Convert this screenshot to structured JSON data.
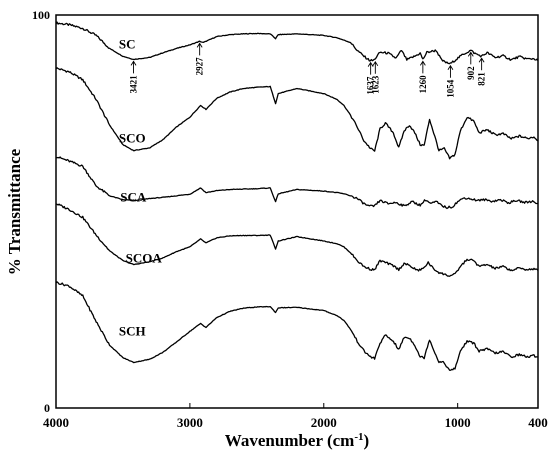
{
  "chart_data": {
    "type": "line",
    "xlabel": "Wavenumber (cm",
    "xlabel_sup": "-1",
    "xlabel_tail": ")",
    "ylabel": "% Transmittance",
    "xlim": [
      4000,
      400
    ],
    "x_reversed": true,
    "ylim": [
      0,
      100
    ],
    "x_ticks": [
      "4000",
      "3000",
      "2000",
      "1000",
      "400"
    ],
    "x_tick_values": [
      4000,
      3000,
      2000,
      1000,
      400
    ],
    "y_ticks": [
      "0",
      "100"
    ],
    "y_tick_values": [
      0,
      100
    ],
    "grid": false,
    "series": [
      {
        "name": "SC",
        "label_at": [
          3530,
          91.5
        ],
        "points": [
          [
            4000,
            98
          ],
          [
            3900,
            97.5
          ],
          [
            3800,
            96.6
          ],
          [
            3700,
            94.8
          ],
          [
            3600,
            91.5
          ],
          [
            3500,
            89.5
          ],
          [
            3421,
            88.7
          ],
          [
            3300,
            89.2
          ],
          [
            3200,
            90.4
          ],
          [
            3100,
            91.5
          ],
          [
            3000,
            92.4
          ],
          [
            2927,
            93.3
          ],
          [
            2900,
            93.0
          ],
          [
            2800,
            94.5
          ],
          [
            2700,
            95.0
          ],
          [
            2600,
            95.2
          ],
          [
            2500,
            95.3
          ],
          [
            2400,
            95.2
          ],
          [
            2360,
            94.0
          ],
          [
            2340,
            95.0
          ],
          [
            2200,
            95.2
          ],
          [
            2000,
            94.8
          ],
          [
            1900,
            94.2
          ],
          [
            1800,
            93.0
          ],
          [
            1750,
            91.0
          ],
          [
            1700,
            89.5
          ],
          [
            1660,
            88.5
          ],
          [
            1637,
            88.4
          ],
          [
            1623,
            88.6
          ],
          [
            1580,
            90.5
          ],
          [
            1520,
            90.3
          ],
          [
            1460,
            89.0
          ],
          [
            1420,
            91.0
          ],
          [
            1380,
            88.6
          ],
          [
            1320,
            89.5
          ],
          [
            1280,
            90.3
          ],
          [
            1260,
            88.7
          ],
          [
            1230,
            90.5
          ],
          [
            1160,
            91.0
          ],
          [
            1120,
            88.5
          ],
          [
            1080,
            87.8
          ],
          [
            1054,
            87.6
          ],
          [
            1020,
            88.5
          ],
          [
            960,
            90.0
          ],
          [
            902,
            91.0
          ],
          [
            870,
            90.2
          ],
          [
            821,
            89.5
          ],
          [
            780,
            90.4
          ],
          [
            720,
            89.2
          ],
          [
            660,
            89.6
          ],
          [
            600,
            88.6
          ],
          [
            540,
            89.4
          ],
          [
            480,
            88.8
          ],
          [
            430,
            88.9
          ],
          [
            400,
            88.4
          ]
        ]
      },
      {
        "name": "SCO",
        "label_at": [
          3530,
          67.5
        ],
        "points": [
          [
            4000,
            86.5
          ],
          [
            3900,
            85.5
          ],
          [
            3800,
            83.5
          ],
          [
            3700,
            78.5
          ],
          [
            3600,
            72.0
          ],
          [
            3500,
            67.0
          ],
          [
            3420,
            65.5
          ],
          [
            3300,
            66.2
          ],
          [
            3200,
            68.3
          ],
          [
            3100,
            71.5
          ],
          [
            3000,
            74.0
          ],
          [
            2920,
            77.0
          ],
          [
            2880,
            76.0
          ],
          [
            2800,
            78.8
          ],
          [
            2700,
            80.4
          ],
          [
            2600,
            81.3
          ],
          [
            2500,
            81.6
          ],
          [
            2400,
            81.8
          ],
          [
            2360,
            77.5
          ],
          [
            2340,
            80.0
          ],
          [
            2200,
            81.3
          ],
          [
            2000,
            80.0
          ],
          [
            1900,
            78.5
          ],
          [
            1850,
            77.0
          ],
          [
            1800,
            74.5
          ],
          [
            1750,
            71.5
          ],
          [
            1700,
            68.0
          ],
          [
            1650,
            66.0
          ],
          [
            1620,
            65.4
          ],
          [
            1580,
            71.0
          ],
          [
            1540,
            72.5
          ],
          [
            1480,
            70.0
          ],
          [
            1440,
            66.2
          ],
          [
            1400,
            70.5
          ],
          [
            1360,
            72.0
          ],
          [
            1320,
            70.0
          ],
          [
            1280,
            67.0
          ],
          [
            1250,
            66.8
          ],
          [
            1210,
            73.5
          ],
          [
            1170,
            69.0
          ],
          [
            1140,
            65.5
          ],
          [
            1100,
            66.0
          ],
          [
            1060,
            63.5
          ],
          [
            1020,
            64.5
          ],
          [
            980,
            70.5
          ],
          [
            930,
            74.0
          ],
          [
            880,
            73.0
          ],
          [
            840,
            70.0
          ],
          [
            780,
            70.8
          ],
          [
            720,
            69.5
          ],
          [
            660,
            69.8
          ],
          [
            600,
            68.5
          ],
          [
            540,
            69.2
          ],
          [
            480,
            68.6
          ],
          [
            430,
            69.0
          ],
          [
            400,
            68.0
          ]
        ]
      },
      {
        "name": "SCA",
        "label_at": [
          3520,
          52.5
        ],
        "points": [
          [
            4000,
            64.0
          ],
          [
            3900,
            62.8
          ],
          [
            3800,
            61.5
          ],
          [
            3700,
            56.5
          ],
          [
            3600,
            54.0
          ],
          [
            3500,
            53.0
          ],
          [
            3400,
            52.8
          ],
          [
            3300,
            53.3
          ],
          [
            3200,
            53.6
          ],
          [
            3100,
            54.0
          ],
          [
            3000,
            54.4
          ],
          [
            2920,
            56.0
          ],
          [
            2880,
            54.8
          ],
          [
            2800,
            55.3
          ],
          [
            2700,
            55.6
          ],
          [
            2600,
            55.7
          ],
          [
            2500,
            55.8
          ],
          [
            2400,
            56.0
          ],
          [
            2360,
            52.5
          ],
          [
            2340,
            54.5
          ],
          [
            2200,
            55.6
          ],
          [
            2000,
            55.2
          ],
          [
            1900,
            54.8
          ],
          [
            1850,
            54.5
          ],
          [
            1800,
            54.0
          ],
          [
            1750,
            53.3
          ],
          [
            1700,
            52.0
          ],
          [
            1660,
            51.3
          ],
          [
            1620,
            51.4
          ],
          [
            1580,
            52.8
          ],
          [
            1520,
            52.0
          ],
          [
            1460,
            52.3
          ],
          [
            1400,
            51.4
          ],
          [
            1340,
            52.5
          ],
          [
            1280,
            51.6
          ],
          [
            1240,
            53.0
          ],
          [
            1200,
            52.0
          ],
          [
            1160,
            52.5
          ],
          [
            1120,
            51.5
          ],
          [
            1080,
            51.0
          ],
          [
            1040,
            51.2
          ],
          [
            1000,
            52.5
          ],
          [
            950,
            53.5
          ],
          [
            900,
            53.2
          ],
          [
            850,
            52.8
          ],
          [
            800,
            53.0
          ],
          [
            740,
            52.6
          ],
          [
            680,
            53.0
          ],
          [
            620,
            52.2
          ],
          [
            560,
            52.8
          ],
          [
            500,
            52.3
          ],
          [
            440,
            52.6
          ],
          [
            400,
            52.0
          ]
        ]
      },
      {
        "name": "SCOA",
        "label_at": [
          3480,
          37.0
        ],
        "points": [
          [
            4000,
            52.0
          ],
          [
            3900,
            50.5
          ],
          [
            3800,
            48.5
          ],
          [
            3700,
            44.0
          ],
          [
            3600,
            40.0
          ],
          [
            3500,
            37.5
          ],
          [
            3420,
            36.5
          ],
          [
            3300,
            37.2
          ],
          [
            3200,
            38.2
          ],
          [
            3100,
            39.8
          ],
          [
            3000,
            41.0
          ],
          [
            2920,
            43.0
          ],
          [
            2880,
            42.0
          ],
          [
            2800,
            43.3
          ],
          [
            2700,
            43.8
          ],
          [
            2600,
            43.9
          ],
          [
            2500,
            43.9
          ],
          [
            2400,
            44.0
          ],
          [
            2360,
            40.5
          ],
          [
            2340,
            42.5
          ],
          [
            2200,
            43.6
          ],
          [
            2000,
            42.5
          ],
          [
            1900,
            41.8
          ],
          [
            1850,
            41.0
          ],
          [
            1800,
            39.5
          ],
          [
            1750,
            37.5
          ],
          [
            1700,
            36.0
          ],
          [
            1650,
            35.3
          ],
          [
            1620,
            35.2
          ],
          [
            1580,
            37.5
          ],
          [
            1540,
            37.0
          ],
          [
            1480,
            36.2
          ],
          [
            1440,
            35.2
          ],
          [
            1400,
            36.8
          ],
          [
            1360,
            36.2
          ],
          [
            1300,
            35.0
          ],
          [
            1260,
            35.4
          ],
          [
            1220,
            37.0
          ],
          [
            1180,
            35.4
          ],
          [
            1140,
            34.5
          ],
          [
            1100,
            34.0
          ],
          [
            1060,
            33.6
          ],
          [
            1020,
            34.0
          ],
          [
            980,
            36.0
          ],
          [
            930,
            37.8
          ],
          [
            880,
            37.5
          ],
          [
            840,
            36.0
          ],
          [
            780,
            36.5
          ],
          [
            720,
            35.5
          ],
          [
            660,
            36.0
          ],
          [
            600,
            35.0
          ],
          [
            540,
            35.6
          ],
          [
            480,
            35.2
          ],
          [
            430,
            35.4
          ],
          [
            400,
            35.0
          ]
        ]
      },
      {
        "name": "SCH",
        "label_at": [
          3530,
          18.5
        ],
        "points": [
          [
            4000,
            32.0
          ],
          [
            3900,
            31.0
          ],
          [
            3800,
            28.5
          ],
          [
            3700,
            22.0
          ],
          [
            3600,
            16.0
          ],
          [
            3500,
            12.8
          ],
          [
            3420,
            11.6
          ],
          [
            3300,
            12.4
          ],
          [
            3200,
            14.2
          ],
          [
            3100,
            16.8
          ],
          [
            3000,
            19.5
          ],
          [
            2920,
            21.5
          ],
          [
            2880,
            20.5
          ],
          [
            2800,
            23.0
          ],
          [
            2700,
            24.6
          ],
          [
            2600,
            25.4
          ],
          [
            2500,
            25.7
          ],
          [
            2400,
            25.8
          ],
          [
            2360,
            24.3
          ],
          [
            2340,
            25.5
          ],
          [
            2200,
            25.6
          ],
          [
            2000,
            24.8
          ],
          [
            1900,
            23.5
          ],
          [
            1850,
            22.3
          ],
          [
            1800,
            20.0
          ],
          [
            1750,
            17.0
          ],
          [
            1700,
            14.5
          ],
          [
            1650,
            13.0
          ],
          [
            1620,
            12.6
          ],
          [
            1580,
            16.5
          ],
          [
            1540,
            18.5
          ],
          [
            1480,
            17.0
          ],
          [
            1440,
            14.8
          ],
          [
            1400,
            18.0
          ],
          [
            1360,
            17.8
          ],
          [
            1320,
            16.0
          ],
          [
            1280,
            13.0
          ],
          [
            1250,
            12.8
          ],
          [
            1210,
            17.5
          ],
          [
            1170,
            14.0
          ],
          [
            1140,
            11.8
          ],
          [
            1100,
            11.5
          ],
          [
            1060,
            9.5
          ],
          [
            1020,
            10.0
          ],
          [
            980,
            14.5
          ],
          [
            930,
            17.0
          ],
          [
            880,
            16.5
          ],
          [
            840,
            14.5
          ],
          [
            780,
            15.0
          ],
          [
            720,
            14.0
          ],
          [
            660,
            14.3
          ],
          [
            600,
            13.0
          ],
          [
            540,
            13.6
          ],
          [
            480,
            13.0
          ],
          [
            430,
            13.3
          ],
          [
            400,
            13.0
          ]
        ]
      }
    ],
    "annotations": [
      {
        "text": "3421",
        "x": 3421,
        "y_arrow": 88.7
      },
      {
        "text": "2927",
        "x": 2927,
        "y_arrow": 93.3
      },
      {
        "text": "1637",
        "x": 1650,
        "y_arrow": 88.4
      },
      {
        "text": "1623",
        "x": 1615,
        "y_arrow": 88.6
      },
      {
        "text": "1260",
        "x": 1260,
        "y_arrow": 88.7
      },
      {
        "text": "1054",
        "x": 1054,
        "y_arrow": 87.6
      },
      {
        "text": "902",
        "x": 902,
        "y_arrow": 91.0
      },
      {
        "text": "821",
        "x": 821,
        "y_arrow": 89.5
      }
    ]
  }
}
